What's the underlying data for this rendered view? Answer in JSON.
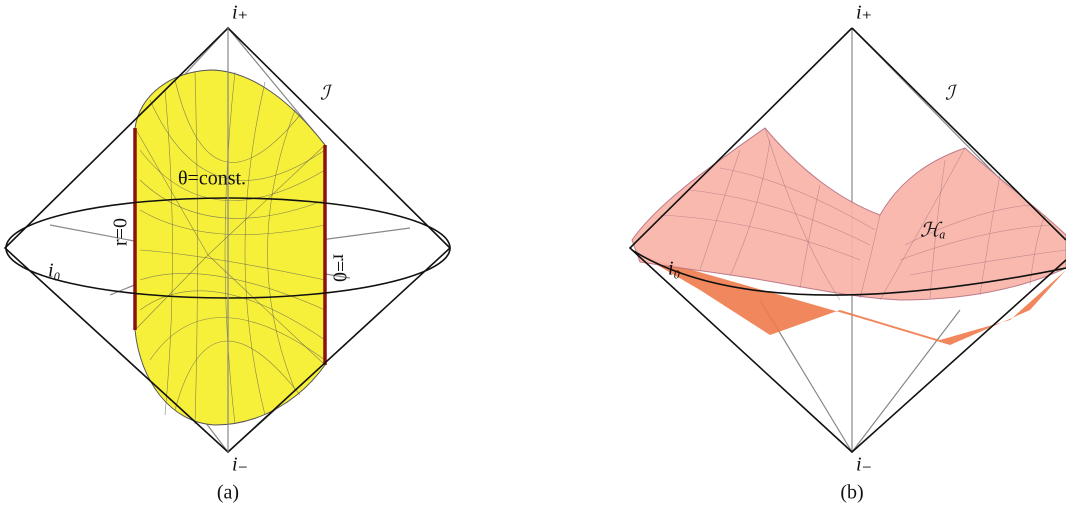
{
  "panels": [
    {
      "caption": "(a)",
      "top": "i₊",
      "bottom": "i₋",
      "scri": "ℐ",
      "spatial_infinity": "i₀",
      "surface": "θ=const.",
      "axis_left": "r=0",
      "axis_right": "r=0"
    },
    {
      "caption": "(b)",
      "top": "i₊",
      "bottom": "i₋",
      "scri": "ℐ",
      "spatial_infinity": "i₀",
      "surface": "ℋₐ"
    }
  ]
}
